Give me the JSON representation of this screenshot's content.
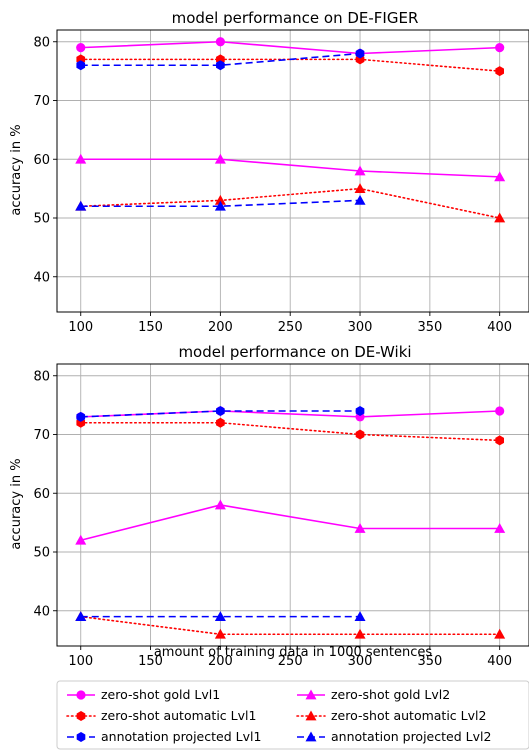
{
  "chart_data": [
    {
      "type": "line",
      "title": "model performance on DE-FIGER",
      "xlabel": "",
      "ylabel": "accuracy in %",
      "xlim": [
        83,
        421
      ],
      "ylim": [
        34,
        82
      ],
      "xticks": [
        100,
        150,
        200,
        250,
        300,
        350,
        400
      ],
      "yticks": [
        40,
        50,
        60,
        70,
        80
      ],
      "grid": true,
      "series": [
        {
          "name": "zero-shot gold Lvl1",
          "color": "#ff00ff",
          "dash": "solid",
          "marker": "circle",
          "x": [
            100,
            200,
            300,
            400
          ],
          "y": [
            79,
            80,
            78,
            79
          ]
        },
        {
          "name": "zero-shot automatic Lvl1",
          "color": "#ff0000",
          "dash": "dotted",
          "marker": "hexagon",
          "x": [
            100,
            200,
            300,
            400
          ],
          "y": [
            77,
            77,
            77,
            75
          ]
        },
        {
          "name": "annotation projected Lvl1",
          "color": "#0000ff",
          "dash": "dashed",
          "marker": "hexagon",
          "x": [
            100,
            200,
            300
          ],
          "y": [
            76,
            76,
            78
          ]
        },
        {
          "name": "zero-shot gold Lvl2",
          "color": "#ff00ff",
          "dash": "solid",
          "marker": "triangle",
          "x": [
            100,
            200,
            300,
            400
          ],
          "y": [
            60,
            60,
            58,
            57
          ]
        },
        {
          "name": "zero-shot automatic Lvl2",
          "color": "#ff0000",
          "dash": "dotted",
          "marker": "triangle",
          "x": [
            100,
            200,
            300,
            400
          ],
          "y": [
            52,
            53,
            55,
            50
          ]
        },
        {
          "name": "annotation projected Lvl2",
          "color": "#0000ff",
          "dash": "dashed",
          "marker": "triangle",
          "x": [
            100,
            200,
            300
          ],
          "y": [
            52,
            52,
            53
          ]
        }
      ]
    },
    {
      "type": "line",
      "title": "model performance on DE-Wiki",
      "xlabel": "amount of training data in 1000 sentences",
      "ylabel": "accuracy in %",
      "xlim": [
        83,
        421
      ],
      "ylim": [
        34,
        82
      ],
      "xticks": [
        100,
        150,
        200,
        250,
        300,
        350,
        400
      ],
      "yticks": [
        40,
        50,
        60,
        70,
        80
      ],
      "grid": true,
      "series": [
        {
          "name": "zero-shot gold Lvl1",
          "color": "#ff00ff",
          "dash": "solid",
          "marker": "circle",
          "x": [
            100,
            200,
            300,
            400
          ],
          "y": [
            73,
            74,
            73,
            74
          ]
        },
        {
          "name": "zero-shot automatic Lvl1",
          "color": "#ff0000",
          "dash": "dotted",
          "marker": "hexagon",
          "x": [
            100,
            200,
            300,
            400
          ],
          "y": [
            72,
            72,
            70,
            69
          ]
        },
        {
          "name": "annotation projected Lvl1",
          "color": "#0000ff",
          "dash": "dashed",
          "marker": "hexagon",
          "x": [
            100,
            200,
            300
          ],
          "y": [
            73,
            74,
            74
          ]
        },
        {
          "name": "zero-shot gold Lvl2",
          "color": "#ff00ff",
          "dash": "solid",
          "marker": "triangle",
          "x": [
            100,
            200,
            300,
            400
          ],
          "y": [
            52,
            58,
            54,
            54
          ]
        },
        {
          "name": "zero-shot automatic Lvl2",
          "color": "#ff0000",
          "dash": "dotted",
          "marker": "triangle",
          "x": [
            100,
            200,
            300,
            400
          ],
          "y": [
            39,
            36,
            36,
            36
          ]
        },
        {
          "name": "annotation projected Lvl2",
          "color": "#0000ff",
          "dash": "dashed",
          "marker": "triangle",
          "x": [
            100,
            200,
            300
          ],
          "y": [
            39,
            39,
            39
          ]
        }
      ]
    }
  ],
  "legend": {
    "placement": "bottom",
    "columns": 2,
    "entries": [
      {
        "label": "zero-shot gold Lvl1",
        "color": "#ff00ff",
        "dash": "solid",
        "marker": "circle"
      },
      {
        "label": "zero-shot gold Lvl2",
        "color": "#ff00ff",
        "dash": "solid",
        "marker": "triangle"
      },
      {
        "label": "zero-shot automatic Lvl1",
        "color": "#ff0000",
        "dash": "dotted",
        "marker": "hexagon"
      },
      {
        "label": "zero-shot automatic Lvl2",
        "color": "#ff0000",
        "dash": "dotted",
        "marker": "triangle"
      },
      {
        "label": "annotation projected Lvl1",
        "color": "#0000ff",
        "dash": "dashed",
        "marker": "hexagon"
      },
      {
        "label": "annotation projected Lvl2",
        "color": "#0000ff",
        "dash": "dashed",
        "marker": "triangle"
      }
    ]
  }
}
